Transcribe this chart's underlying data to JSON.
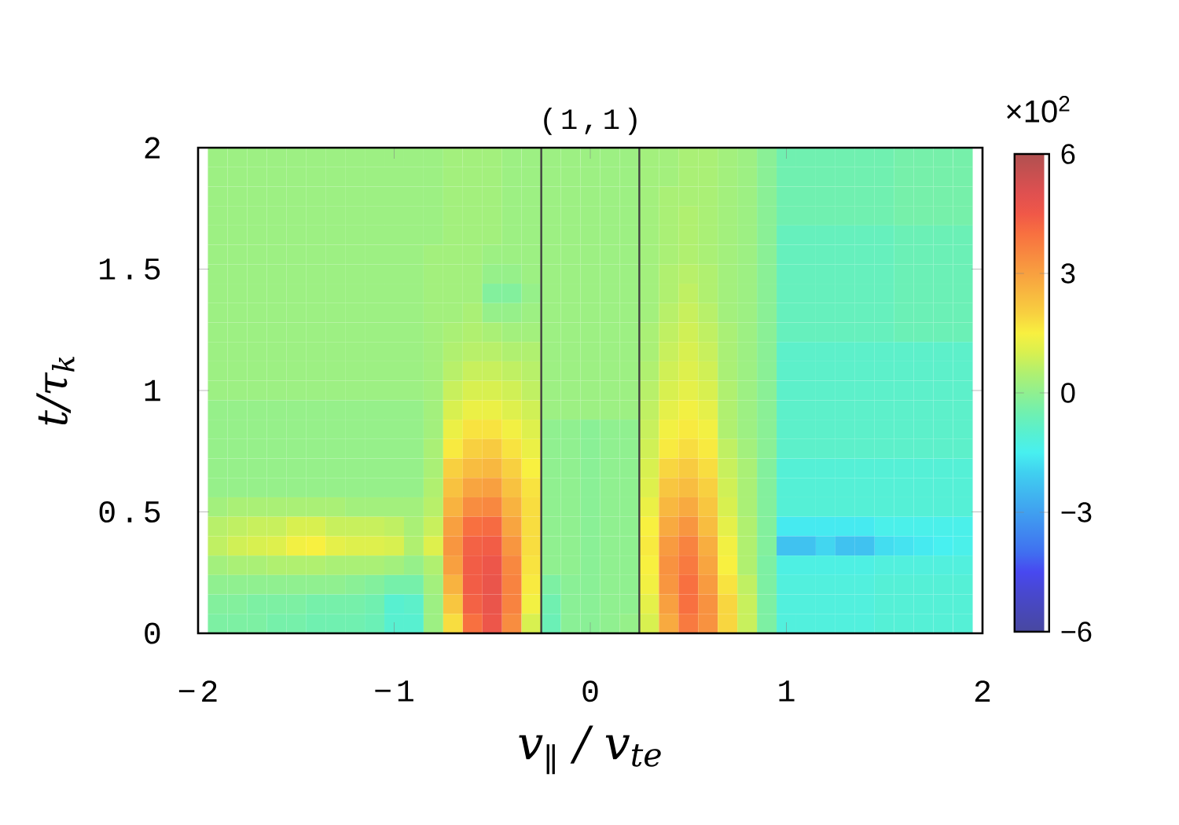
{
  "chart_data": {
    "type": "heatmap",
    "title": "(1,1)",
    "xlabel": "v$_{∥}$ / v$_{te}$",
    "ylabel": "t/τ$_{k}$",
    "clabel": "×10$^{2}$",
    "x": [
      -1.9,
      -1.8,
      -1.7,
      -1.6,
      -1.5,
      -1.4,
      -1.3,
      -1.2,
      -1.1,
      -1.0,
      -0.9,
      -0.8,
      -0.7,
      -0.6,
      -0.5,
      -0.4,
      -0.3,
      -0.2,
      -0.1,
      0,
      0.1,
      0.2,
      0.3,
      0.4,
      0.5,
      0.6,
      0.7,
      0.8,
      0.9,
      1.0,
      1.1,
      1.2,
      1.3,
      1.4,
      1.5,
      1.6,
      1.7,
      1.8,
      1.9
    ],
    "cells": [
      [
        0.2,
        0.2,
        0.2,
        0.2,
        0.2,
        0.2,
        0.2,
        0.2,
        0.2,
        0.2,
        0.2,
        0.2,
        0.3,
        0.3,
        0.3,
        0.2,
        0.2,
        0.2,
        0.2,
        0.2,
        0.2,
        0.2,
        0.3,
        0.3,
        0.4,
        0.4,
        0.3,
        0.2,
        -0.1,
        -0.5,
        -0.5,
        -0.5,
        -0.5,
        -0.5,
        -0.5,
        -0.4,
        -0.4,
        -0.4,
        -0.4
      ],
      [
        0.2,
        0.2,
        0.2,
        0.2,
        0.2,
        0.2,
        0.2,
        0.2,
        0.2,
        0.2,
        0.2,
        0.2,
        0.3,
        0.3,
        0.3,
        0.2,
        0.2,
        0.2,
        0.2,
        0.2,
        0.2,
        0.2,
        0.3,
        0.3,
        0.4,
        0.4,
        0.3,
        0.2,
        -0.1,
        -0.5,
        -0.5,
        -0.5,
        -0.5,
        -0.5,
        -0.5,
        -0.4,
        -0.4,
        -0.4,
        -0.4
      ],
      [
        0.2,
        0.2,
        0.2,
        0.2,
        0.2,
        0.2,
        0.2,
        0.2,
        0.2,
        0.2,
        0.2,
        0.2,
        0.3,
        0.3,
        0.3,
        0.2,
        0.2,
        0.2,
        0.2,
        0.2,
        0.2,
        0.2,
        0.3,
        0.4,
        0.4,
        0.4,
        0.3,
        0.2,
        -0.1,
        -0.5,
        -0.5,
        -0.5,
        -0.5,
        -0.5,
        -0.5,
        -0.4,
        -0.4,
        -0.4,
        -0.4
      ],
      [
        0.2,
        0.2,
        0.2,
        0.2,
        0.2,
        0.2,
        0.2,
        0.2,
        0.2,
        0.2,
        0.2,
        0.2,
        0.3,
        0.3,
        0.3,
        0.2,
        0.2,
        0.2,
        0.2,
        0.2,
        0.2,
        0.2,
        0.3,
        0.4,
        0.5,
        0.4,
        0.3,
        0.2,
        -0.1,
        -0.5,
        -0.5,
        -0.5,
        -0.5,
        -0.5,
        -0.5,
        -0.4,
        -0.4,
        -0.4,
        -0.4
      ],
      [
        0.2,
        0.2,
        0.2,
        0.2,
        0.2,
        0.2,
        0.2,
        0.2,
        0.2,
        0.2,
        0.2,
        0.2,
        0.3,
        0.3,
        0.3,
        0.2,
        0.2,
        0.2,
        0.2,
        0.2,
        0.2,
        0.2,
        0.3,
        0.4,
        0.5,
        0.4,
        0.3,
        0.2,
        -0.1,
        -0.7,
        -0.7,
        -0.7,
        -0.7,
        -0.7,
        -0.7,
        -0.6,
        -0.6,
        -0.6,
        -0.6
      ],
      [
        0.2,
        0.2,
        0.2,
        0.2,
        0.2,
        0.2,
        0.2,
        0.2,
        0.2,
        0.2,
        0.2,
        0.3,
        0.3,
        0.3,
        0.2,
        0.2,
        0.2,
        0.2,
        0.2,
        0.2,
        0.2,
        0.2,
        0.3,
        0.4,
        0.5,
        0.4,
        0.3,
        0.2,
        -0.1,
        -0.7,
        -0.7,
        -0.7,
        -0.7,
        -0.7,
        -0.7,
        -0.6,
        -0.6,
        -0.6,
        -0.6
      ],
      [
        0.2,
        0.2,
        0.2,
        0.2,
        0.2,
        0.2,
        0.2,
        0.2,
        0.2,
        0.2,
        0.2,
        0.3,
        0.3,
        0.3,
        0.1,
        0.1,
        0.2,
        0.2,
        0.2,
        0.2,
        0.2,
        0.2,
        0.3,
        0.5,
        0.6,
        0.5,
        0.3,
        0.2,
        -0.1,
        -0.7,
        -0.7,
        -0.7,
        -0.7,
        -0.7,
        -0.7,
        -0.6,
        -0.6,
        -0.6,
        -0.6
      ],
      [
        0.2,
        0.2,
        0.2,
        0.2,
        0.2,
        0.2,
        0.2,
        0.2,
        0.2,
        0.2,
        0.2,
        0.3,
        0.3,
        0.3,
        -0.2,
        -0.2,
        0.1,
        0.2,
        0.2,
        0.2,
        0.2,
        0.2,
        0.3,
        0.5,
        0.7,
        0.5,
        0.3,
        0.2,
        -0.1,
        -0.7,
        -0.7,
        -0.7,
        -0.7,
        -0.7,
        -0.7,
        -0.6,
        -0.6,
        -0.6,
        -0.6
      ],
      [
        0.2,
        0.2,
        0.2,
        0.2,
        0.2,
        0.2,
        0.2,
        0.2,
        0.2,
        0.2,
        0.2,
        0.3,
        0.3,
        0.4,
        0.1,
        0.1,
        0.2,
        0.2,
        0.2,
        0.2,
        0.2,
        0.2,
        0.3,
        0.6,
        0.8,
        0.6,
        0.3,
        0.2,
        -0.1,
        -0.7,
        -0.7,
        -0.7,
        -0.7,
        -0.7,
        -0.7,
        -0.6,
        -0.6,
        -0.6,
        -0.6
      ],
      [
        0.2,
        0.2,
        0.2,
        0.2,
        0.2,
        0.2,
        0.2,
        0.2,
        0.2,
        0.2,
        0.2,
        0.3,
        0.4,
        0.5,
        0.4,
        0.3,
        0.3,
        0.2,
        0.2,
        0.2,
        0.2,
        0.2,
        0.4,
        0.7,
        0.9,
        0.7,
        0.4,
        0.2,
        -0.1,
        -0.7,
        -0.7,
        -0.7,
        -0.7,
        -0.7,
        -0.7,
        -0.6,
        -0.6,
        -0.6,
        -0.6
      ],
      [
        0.2,
        0.2,
        0.2,
        0.2,
        0.2,
        0.2,
        0.2,
        0.2,
        0.2,
        0.2,
        0.2,
        0.3,
        0.5,
        0.6,
        0.6,
        0.5,
        0.5,
        0.2,
        0.2,
        0.2,
        0.2,
        0.2,
        0.4,
        0.8,
        1.0,
        0.8,
        0.4,
        0.2,
        -0.1,
        -0.9,
        -0.9,
        -0.9,
        -0.9,
        -0.9,
        -0.9,
        -0.9,
        -0.9,
        -0.9,
        -0.9
      ],
      [
        0.2,
        0.2,
        0.2,
        0.2,
        0.2,
        0.2,
        0.2,
        0.2,
        0.2,
        0.2,
        0.2,
        0.3,
        0.6,
        0.8,
        0.8,
        0.7,
        0.6,
        0.2,
        0.2,
        0.2,
        0.2,
        0.2,
        0.5,
        0.9,
        1.1,
        0.9,
        0.4,
        0.2,
        -0.1,
        -0.9,
        -0.9,
        -0.9,
        -0.9,
        -0.9,
        -0.9,
        -0.9,
        -0.9,
        -0.9,
        -0.9
      ],
      [
        0.2,
        0.2,
        0.2,
        0.2,
        0.2,
        0.2,
        0.2,
        0.2,
        0.2,
        0.2,
        0.2,
        0.3,
        0.8,
        1.0,
        1.0,
        0.9,
        0.7,
        0.2,
        0.2,
        0.2,
        0.2,
        0.2,
        0.6,
        1.0,
        1.2,
        1.0,
        0.5,
        0.2,
        -0.1,
        -0.9,
        -0.9,
        -0.9,
        -0.9,
        -0.9,
        -0.9,
        -0.9,
        -0.9,
        -0.9,
        -0.9
      ],
      [
        0.1,
        0.1,
        0.1,
        0.1,
        0.1,
        0.1,
        0.1,
        0.1,
        0.1,
        0.1,
        0.1,
        0.3,
        1.0,
        1.3,
        1.3,
        1.1,
        0.9,
        0.2,
        0.2,
        0.2,
        0.2,
        0.2,
        0.7,
        1.2,
        1.4,
        1.2,
        0.5,
        0.2,
        -0.1,
        -0.9,
        -0.9,
        -0.9,
        -0.9,
        -0.9,
        -0.9,
        -0.9,
        -0.9,
        -0.9,
        -0.9
      ],
      [
        0.1,
        0.1,
        0.1,
        0.1,
        0.1,
        0.1,
        0.1,
        0.1,
        0.1,
        0.1,
        0.1,
        0.3,
        1.3,
        1.7,
        1.7,
        1.4,
        1.1,
        0,
        0,
        -0.1,
        0,
        0,
        0.8,
        1.4,
        1.6,
        1.4,
        0.5,
        0.2,
        -0.1,
        -0.9,
        -0.9,
        -0.9,
        -0.9,
        -0.9,
        -0.9,
        -0.9,
        -0.9,
        -0.9,
        -0.9
      ],
      [
        0.1,
        0.1,
        0.1,
        0.1,
        0.1,
        0.1,
        0.1,
        0.1,
        0.1,
        0.1,
        0.1,
        0.4,
        1.6,
        2.0,
        2.1,
        1.7,
        1.3,
        0,
        0,
        -0.1,
        0,
        0,
        0.9,
        1.6,
        1.8,
        1.6,
        0.7,
        0.3,
        -0.1,
        -0.9,
        -0.9,
        -0.9,
        -0.9,
        -0.9,
        -0.9,
        -0.9,
        -0.9,
        -0.9,
        -0.9
      ],
      [
        0.1,
        0.1,
        0.1,
        0.1,
        0.1,
        0.1,
        0.1,
        0.1,
        0.1,
        0.1,
        0.1,
        0.4,
        2.0,
        2.4,
        2.5,
        2.0,
        1.5,
        0,
        0,
        -0.1,
        0,
        0,
        1.0,
        1.9,
        2.1,
        1.8,
        0.8,
        0.4,
        -0.2,
        -1.1,
        -1.1,
        -1.1,
        -1.1,
        -1.1,
        -1.1,
        -1.1,
        -1.1,
        -1.1,
        -1.1
      ],
      [
        0.1,
        0.1,
        0.1,
        0.1,
        0.1,
        0.1,
        0.1,
        0.1,
        0.1,
        0.1,
        0.1,
        0.5,
        2.3,
        2.9,
        3.0,
        2.3,
        1.7,
        0,
        0,
        -0.1,
        0,
        0,
        1.1,
        2.2,
        2.4,
        2.0,
        0.9,
        0.4,
        -0.2,
        -1.1,
        -1.1,
        -1.1,
        -1.1,
        -1.1,
        -1.1,
        -1.1,
        -1.1,
        -1.1,
        -1.1
      ],
      [
        0.3,
        0.4,
        0.4,
        0.4,
        0.4,
        0.4,
        0.4,
        0.3,
        0.3,
        0.3,
        0.3,
        0.6,
        2.6,
        3.4,
        3.5,
        2.6,
        1.8,
        0,
        0,
        -0.1,
        0,
        0,
        1.3,
        2.5,
        2.8,
        2.2,
        1.0,
        0.4,
        -0.2,
        -1.1,
        -1.1,
        -1.1,
        -1.1,
        -1.1,
        -1.1,
        -1.1,
        -1.1,
        -1.1,
        -1.1
      ],
      [
        0.6,
        0.7,
        0.8,
        0.8,
        1.0,
        1.0,
        0.8,
        0.8,
        0.8,
        0.7,
        0.4,
        0.8,
        3.0,
        4.0,
        4.1,
        2.9,
        1.8,
        0,
        0,
        -0.1,
        0,
        0,
        1.5,
        2.8,
        3.2,
        2.4,
        1.2,
        0.5,
        -0.2,
        -1.6,
        -1.6,
        -1.6,
        -1.6,
        -1.6,
        -1.4,
        -1.4,
        -1.4,
        -1.4,
        -1.4
      ],
      [
        0.7,
        0.9,
        1.0,
        1.1,
        1.4,
        1.5,
        1.2,
        1.1,
        1.1,
        1.0,
        0.5,
        1.1,
        3.2,
        4.3,
        4.4,
        3.2,
        1.8,
        0,
        0,
        -0.1,
        0,
        0,
        1.6,
        3.1,
        3.6,
        2.7,
        1.4,
        0.5,
        -0.2,
        -2.3,
        -2.3,
        -1.9,
        -2.3,
        -2.3,
        -1.8,
        -1.7,
        -1.6,
        -1.5,
        -1.4
      ],
      [
        0.3,
        0.4,
        0.4,
        0.5,
        0.5,
        0.5,
        0.4,
        0.4,
        0.4,
        0.3,
        0.1,
        0.5,
        3.0,
        4.4,
        4.6,
        3.5,
        1.7,
        0,
        0,
        -0.1,
        0,
        0,
        1.5,
        3.3,
        3.8,
        2.9,
        1.5,
        0.5,
        -0.3,
        -1.3,
        -1.3,
        -1.3,
        -1.3,
        -1.3,
        -1.2,
        -1.2,
        -1.2,
        -1.2,
        -1.2
      ],
      [
        0,
        0,
        0,
        0,
        0,
        0,
        0,
        -0.1,
        -0.2,
        -0.4,
        -0.4,
        0.3,
        2.6,
        4.4,
        4.7,
        3.6,
        1.6,
        -0.3,
        -0.1,
        -0.1,
        0,
        0,
        1.4,
        3.2,
        4.0,
        3.1,
        1.7,
        0.7,
        -0.3,
        -1.2,
        -1.2,
        -1.2,
        -1.2,
        -1.2,
        -1.1,
        -1.1,
        -1.1,
        -1.1,
        -1.1
      ],
      [
        -0.2,
        -0.2,
        -0.3,
        -0.3,
        -0.3,
        -0.4,
        -0.4,
        -0.4,
        -0.5,
        -1.0,
        -0.9,
        0.2,
        2.2,
        4.3,
        4.7,
        3.6,
        1.4,
        -0.5,
        -0.1,
        -0.1,
        0,
        0,
        1.2,
        3.0,
        4.0,
        3.3,
        1.9,
        0.8,
        -0.3,
        -1.2,
        -1.2,
        -1.2,
        -1.2,
        -1.2,
        -1.1,
        -1.1,
        -1.1,
        -1.1,
        -1.1
      ],
      [
        -0.3,
        -0.3,
        -0.3,
        -0.4,
        -0.4,
        -0.5,
        -0.5,
        -0.5,
        -0.6,
        -1.0,
        -1.0,
        0.2,
        1.8,
        4.0,
        4.6,
        3.4,
        1.0,
        -0.6,
        -0.1,
        -0.1,
        0,
        0.1,
        1.0,
        2.8,
        3.8,
        3.3,
        1.9,
        0.8,
        -0.3,
        -1.2,
        -1.2,
        -1.2,
        -1.2,
        -1.2,
        -1.1,
        -1.1,
        -1.1,
        -1.1,
        -1.1
      ]
    ],
    "clim": [
      -6,
      6
    ],
    "cticks": [
      {
        "value": -6,
        "label": "−6"
      },
      {
        "value": -3,
        "label": "−3"
      },
      0,
      3,
      6
    ],
    "xlim": [
      -2,
      2
    ],
    "ylim": [
      0,
      2
    ],
    "xticks": [
      {
        "value": -2,
        "label": "−2"
      },
      {
        "value": -1,
        "label": "−1"
      },
      0,
      1,
      2
    ],
    "yticks": [
      0,
      0.5,
      1,
      1.5,
      2
    ],
    "ref_lines": [
      {
        "axis": "x",
        "value": -0.25,
        "color": "#404040"
      },
      {
        "axis": "x",
        "value": 0.25,
        "color": "#404040"
      }
    ]
  }
}
